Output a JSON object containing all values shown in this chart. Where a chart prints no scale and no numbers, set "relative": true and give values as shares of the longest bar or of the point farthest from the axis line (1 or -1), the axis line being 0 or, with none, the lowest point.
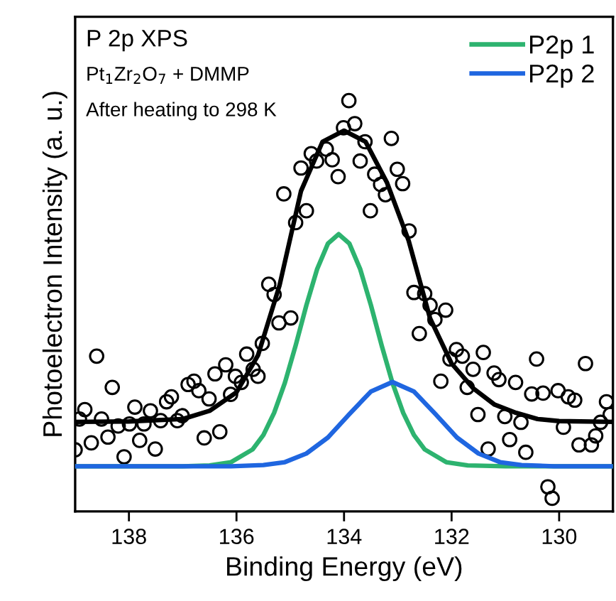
{
  "chart_data": {
    "type": "line",
    "relative": true,
    "xlabel": "Binding Energy (eV)",
    "ylabel": "Photoelectron Intensity (a. u.)",
    "annotations": [
      "P 2p XPS",
      "Pt$_{1}$Zr$_{2}$O$_{7}$ + DMMP",
      "After heating to 298 K"
    ],
    "xlim": [
      139,
      129
    ],
    "xticks": [
      138,
      136,
      134,
      132,
      130
    ],
    "tick_labels": "x",
    "legend": "top right",
    "grid": false,
    "series": [
      {
        "type": "scatter",
        "marker": "circle",
        "color": "#000000",
        "x": [
          139.0,
          138.92,
          138.82,
          138.7,
          138.6,
          138.51,
          138.39,
          138.31,
          138.2,
          138.09,
          137.99,
          137.89,
          137.8,
          137.72,
          137.6,
          137.51,
          137.41,
          137.3,
          137.21,
          137.1,
          137.01,
          136.9,
          136.79,
          136.7,
          136.6,
          136.51,
          136.4,
          136.31,
          136.2,
          136.11,
          136.02,
          135.91,
          135.81,
          135.69,
          135.6,
          135.52,
          135.4,
          135.3,
          135.21,
          135.12,
          134.99,
          134.9,
          134.8,
          134.7,
          134.61,
          134.51,
          134.33,
          134.22,
          134.11,
          134.01,
          133.91,
          133.8,
          133.7,
          133.61,
          133.51,
          133.43,
          133.32,
          133.23,
          133.12,
          133.01,
          132.91,
          132.79,
          132.7,
          132.6,
          132.5,
          132.4,
          132.31,
          132.2,
          132.11,
          132.03,
          131.91,
          131.8,
          131.71,
          131.6,
          131.51,
          131.41,
          131.32,
          131.21,
          131.12,
          131.01,
          130.92,
          130.81,
          130.71,
          130.62,
          130.51,
          130.42,
          130.3,
          130.21,
          130.13,
          130.02,
          129.92,
          129.83,
          129.71,
          129.63,
          129.51,
          129.4,
          129.32,
          129.23,
          129.12,
          129.05
        ],
        "values": [
          0.15,
          0.225,
          0.248,
          0.167,
          0.378,
          0.225,
          0.181,
          0.302,
          0.208,
          0.133,
          0.213,
          0.254,
          0.173,
          0.213,
          0.245,
          0.152,
          0.221,
          0.267,
          0.279,
          0.221,
          0.233,
          0.309,
          0.317,
          0.294,
          0.179,
          0.274,
          0.335,
          0.194,
          0.357,
          0.285,
          0.329,
          0.314,
          0.383,
          0.346,
          0.329,
          0.409,
          0.553,
          0.528,
          0.459,
          0.773,
          0.471,
          0.703,
          0.836,
          0.732,
          0.871,
          0.853,
          0.882,
          0.856,
          0.815,
          0.934,
          1.0,
          0.944,
          0.853,
          0.9,
          0.732,
          0.821,
          0.796,
          0.771,
          0.908,
          0.833,
          0.798,
          0.683,
          0.533,
          0.433,
          0.53,
          0.502,
          0.467,
          0.317,
          0.49,
          0.371,
          0.394,
          0.378,
          0.302,
          0.346,
          0.236,
          0.387,
          0.152,
          0.337,
          0.321,
          0.231,
          0.175,
          0.314,
          0.217,
          0.144,
          0.286,
          0.371,
          0.288,
          0.06,
          0.032,
          0.294,
          0.205,
          0.279,
          0.271,
          0.162,
          0.36,
          0.162,
          0.184,
          0.217,
          0.267,
          0.236
        ]
      },
      {
        "color": "#000000",
        "x": [
          139,
          138,
          137,
          136.5,
          136,
          135.6,
          135.2,
          134.8,
          134.4,
          134,
          133.6,
          133.2,
          132.8,
          132.4,
          132,
          131.6,
          131.2,
          130.8,
          130.4,
          130,
          129
        ],
        "values": [
          0.218,
          0.219,
          0.225,
          0.245,
          0.29,
          0.38,
          0.55,
          0.78,
          0.9,
          0.927,
          0.9,
          0.8,
          0.66,
          0.47,
          0.36,
          0.3,
          0.26,
          0.24,
          0.225,
          0.22,
          0.218
        ]
      },
      {
        "name": "P2p 1",
        "color": "#2db36f",
        "x": [
          139,
          137,
          136.5,
          136.1,
          135.7,
          135.5,
          135.3,
          135.1,
          134.9,
          134.7,
          134.5,
          134.3,
          134.1,
          133.9,
          133.7,
          133.5,
          133.3,
          133.1,
          132.9,
          132.7,
          132.5,
          132.1,
          131.7,
          131,
          129
        ],
        "values": [
          0.11,
          0.11,
          0.112,
          0.12,
          0.151,
          0.186,
          0.24,
          0.313,
          0.404,
          0.502,
          0.59,
          0.652,
          0.675,
          0.652,
          0.59,
          0.502,
          0.404,
          0.313,
          0.24,
          0.186,
          0.151,
          0.12,
          0.112,
          0.11,
          0.11
        ]
      },
      {
        "name": "P2p 2",
        "color": "#1f66e0",
        "x": [
          139,
          136.1,
          135.5,
          135.1,
          134.7,
          134.3,
          133.9,
          133.5,
          133.1,
          132.7,
          132.3,
          131.9,
          131.5,
          131.1,
          130.7,
          130.1,
          129
        ],
        "values": [
          0.11,
          0.11,
          0.113,
          0.12,
          0.141,
          0.18,
          0.237,
          0.292,
          0.315,
          0.292,
          0.237,
          0.18,
          0.141,
          0.12,
          0.113,
          0.11,
          0.11
        ]
      }
    ]
  }
}
